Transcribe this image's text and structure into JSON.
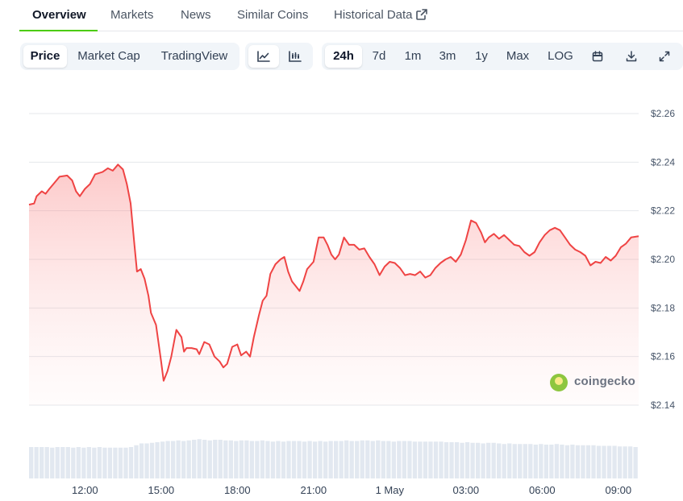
{
  "tabs": [
    {
      "label": "Overview"
    },
    {
      "label": "Markets"
    },
    {
      "label": "News"
    },
    {
      "label": "Similar Coins"
    },
    {
      "label": "Historical Data"
    }
  ],
  "toolbar": {
    "view_buttons": [
      {
        "label": "Price",
        "selected": true
      },
      {
        "label": "Market Cap",
        "selected": false
      },
      {
        "label": "TradingView",
        "selected": false
      }
    ],
    "chart_style_icons": [
      "line-chart-icon",
      "candlestick-chart-icon"
    ],
    "range_buttons": [
      {
        "label": "24h",
        "selected": true
      },
      {
        "label": "7d",
        "selected": false
      },
      {
        "label": "1m",
        "selected": false
      },
      {
        "label": "3m",
        "selected": false
      },
      {
        "label": "1y",
        "selected": false
      },
      {
        "label": "Max",
        "selected": false
      },
      {
        "label": "LOG",
        "selected": false
      }
    ],
    "action_icons": [
      "calendar-icon",
      "download-icon",
      "fullscreen-icon"
    ]
  },
  "watermark": {
    "text": "coingecko"
  },
  "colors": {
    "line": "#ef4444",
    "accent": "#4bcc00",
    "volume": "#e2e8f0",
    "grid": "#e5e7eb"
  },
  "chart_data": {
    "type": "area",
    "title": "",
    "xlabel": "",
    "ylabel": "",
    "x_unit": "hours",
    "x_ticks": [
      {
        "t": 12,
        "label": "12:00"
      },
      {
        "t": 15,
        "label": "15:00"
      },
      {
        "t": 18,
        "label": "18:00"
      },
      {
        "t": 21,
        "label": "21:00"
      },
      {
        "t": 24,
        "label": "1 May"
      },
      {
        "t": 27,
        "label": "03:00"
      },
      {
        "t": 30,
        "label": "06:00"
      },
      {
        "t": 33,
        "label": "09:00"
      }
    ],
    "y_ticks": [
      {
        "v": 2.14,
        "label": "$2.14"
      },
      {
        "v": 2.16,
        "label": "$2.16"
      },
      {
        "v": 2.18,
        "label": "$2.18"
      },
      {
        "v": 2.2,
        "label": "$2.20"
      },
      {
        "v": 2.22,
        "label": "$2.22"
      },
      {
        "v": 2.24,
        "label": "$2.24"
      },
      {
        "v": 2.26,
        "label": "$2.26"
      }
    ],
    "xlim": [
      9.8,
      33.8
    ],
    "ylim": [
      2.14,
      2.26
    ],
    "grid": true,
    "series": [
      {
        "points": [
          [
            9.8,
            2.2225
          ],
          [
            10.0,
            2.223
          ],
          [
            10.1,
            2.226
          ],
          [
            10.3,
            2.228
          ],
          [
            10.45,
            2.227
          ],
          [
            10.6,
            2.229
          ],
          [
            10.8,
            2.2315
          ],
          [
            11.0,
            2.234
          ],
          [
            11.3,
            2.2345
          ],
          [
            11.5,
            2.2325
          ],
          [
            11.65,
            2.228
          ],
          [
            11.8,
            2.226
          ],
          [
            12.0,
            2.229
          ],
          [
            12.2,
            2.231
          ],
          [
            12.4,
            2.235
          ],
          [
            12.7,
            2.236
          ],
          [
            12.9,
            2.2375
          ],
          [
            13.1,
            2.2365
          ],
          [
            13.3,
            2.239
          ],
          [
            13.5,
            2.237
          ],
          [
            13.65,
            2.231
          ],
          [
            13.8,
            2.223
          ],
          [
            13.95,
            2.206
          ],
          [
            14.05,
            2.195
          ],
          [
            14.2,
            2.196
          ],
          [
            14.35,
            2.192
          ],
          [
            14.5,
            2.185
          ],
          [
            14.6,
            2.178
          ],
          [
            14.8,
            2.173
          ],
          [
            15.0,
            2.158
          ],
          [
            15.1,
            2.15
          ],
          [
            15.25,
            2.154
          ],
          [
            15.4,
            2.16
          ],
          [
            15.6,
            2.171
          ],
          [
            15.8,
            2.168
          ],
          [
            15.9,
            2.162
          ],
          [
            16.0,
            2.1635
          ],
          [
            16.2,
            2.1635
          ],
          [
            16.4,
            2.163
          ],
          [
            16.5,
            2.161
          ],
          [
            16.7,
            2.166
          ],
          [
            16.9,
            2.165
          ],
          [
            17.1,
            2.16
          ],
          [
            17.3,
            2.158
          ],
          [
            17.45,
            2.1555
          ],
          [
            17.6,
            2.157
          ],
          [
            17.8,
            2.164
          ],
          [
            18.0,
            2.165
          ],
          [
            18.15,
            2.1605
          ],
          [
            18.35,
            2.162
          ],
          [
            18.5,
            2.16
          ],
          [
            18.65,
            2.168
          ],
          [
            18.85,
            2.177
          ],
          [
            19.0,
            2.183
          ],
          [
            19.15,
            2.185
          ],
          [
            19.3,
            2.194
          ],
          [
            19.5,
            2.198
          ],
          [
            19.7,
            2.2
          ],
          [
            19.85,
            2.201
          ],
          [
            20.0,
            2.195
          ],
          [
            20.15,
            2.191
          ],
          [
            20.3,
            2.189
          ],
          [
            20.45,
            2.187
          ],
          [
            20.6,
            2.191
          ],
          [
            20.75,
            2.196
          ],
          [
            21.0,
            2.199
          ],
          [
            21.2,
            2.209
          ],
          [
            21.4,
            2.209
          ],
          [
            21.55,
            2.206
          ],
          [
            21.7,
            2.202
          ],
          [
            21.85,
            2.2
          ],
          [
            22.0,
            2.202
          ],
          [
            22.2,
            2.209
          ],
          [
            22.4,
            2.206
          ],
          [
            22.6,
            2.206
          ],
          [
            22.8,
            2.204
          ],
          [
            23.0,
            2.2045
          ],
          [
            23.2,
            2.201
          ],
          [
            23.4,
            2.198
          ],
          [
            23.6,
            2.1935
          ],
          [
            23.8,
            2.197
          ],
          [
            24.0,
            2.199
          ],
          [
            24.2,
            2.1985
          ],
          [
            24.4,
            2.1965
          ],
          [
            24.6,
            2.1935
          ],
          [
            24.8,
            2.194
          ],
          [
            25.0,
            2.1935
          ],
          [
            25.2,
            2.195
          ],
          [
            25.4,
            2.1925
          ],
          [
            25.6,
            2.1935
          ],
          [
            25.8,
            2.1965
          ],
          [
            26.0,
            2.1985
          ],
          [
            26.2,
            2.2
          ],
          [
            26.4,
            2.201
          ],
          [
            26.6,
            2.199
          ],
          [
            26.8,
            2.202
          ],
          [
            27.0,
            2.208
          ],
          [
            27.2,
            2.216
          ],
          [
            27.4,
            2.215
          ],
          [
            27.6,
            2.211
          ],
          [
            27.75,
            2.207
          ],
          [
            27.9,
            2.209
          ],
          [
            28.1,
            2.2105
          ],
          [
            28.3,
            2.2085
          ],
          [
            28.5,
            2.21
          ],
          [
            28.7,
            2.208
          ],
          [
            28.9,
            2.206
          ],
          [
            29.1,
            2.2055
          ],
          [
            29.3,
            2.203
          ],
          [
            29.5,
            2.2015
          ],
          [
            29.7,
            2.203
          ],
          [
            29.9,
            2.207
          ],
          [
            30.1,
            2.21
          ],
          [
            30.3,
            2.212
          ],
          [
            30.5,
            2.213
          ],
          [
            30.7,
            2.212
          ],
          [
            30.9,
            2.209
          ],
          [
            31.1,
            2.206
          ],
          [
            31.3,
            2.204
          ],
          [
            31.5,
            2.203
          ],
          [
            31.7,
            2.2015
          ],
          [
            31.9,
            2.1975
          ],
          [
            32.1,
            2.199
          ],
          [
            32.3,
            2.1985
          ],
          [
            32.5,
            2.201
          ],
          [
            32.7,
            2.1995
          ],
          [
            32.9,
            2.2015
          ],
          [
            33.1,
            2.205
          ],
          [
            33.3,
            2.2065
          ],
          [
            33.5,
            2.209
          ],
          [
            33.8,
            2.2095
          ]
        ]
      }
    ],
    "volume": [
      52,
      52,
      52,
      52,
      51,
      52,
      52,
      52,
      51,
      52,
      51,
      52,
      51,
      52,
      51,
      51,
      51,
      51,
      51,
      52,
      55,
      58,
      58,
      59,
      60,
      61,
      62,
      62,
      63,
      62,
      63,
      64,
      65,
      64,
      63,
      64,
      64,
      63,
      63,
      62,
      63,
      63,
      62,
      62,
      63,
      62,
      61,
      62,
      61,
      62,
      62,
      62,
      61,
      62,
      61,
      62,
      61,
      62,
      62,
      62,
      63,
      62,
      62,
      63,
      63,
      62,
      63,
      62,
      62,
      61,
      62,
      62,
      62,
      61,
      61,
      61,
      61,
      61,
      61,
      60,
      60,
      60,
      59,
      60,
      59,
      59,
      58,
      59,
      59,
      58,
      57,
      58,
      57,
      57,
      57,
      57,
      56,
      57,
      56,
      56,
      57,
      56,
      55,
      56,
      55,
      55,
      55,
      55,
      54,
      54,
      54,
      54,
      53,
      53,
      53,
      52
    ]
  }
}
